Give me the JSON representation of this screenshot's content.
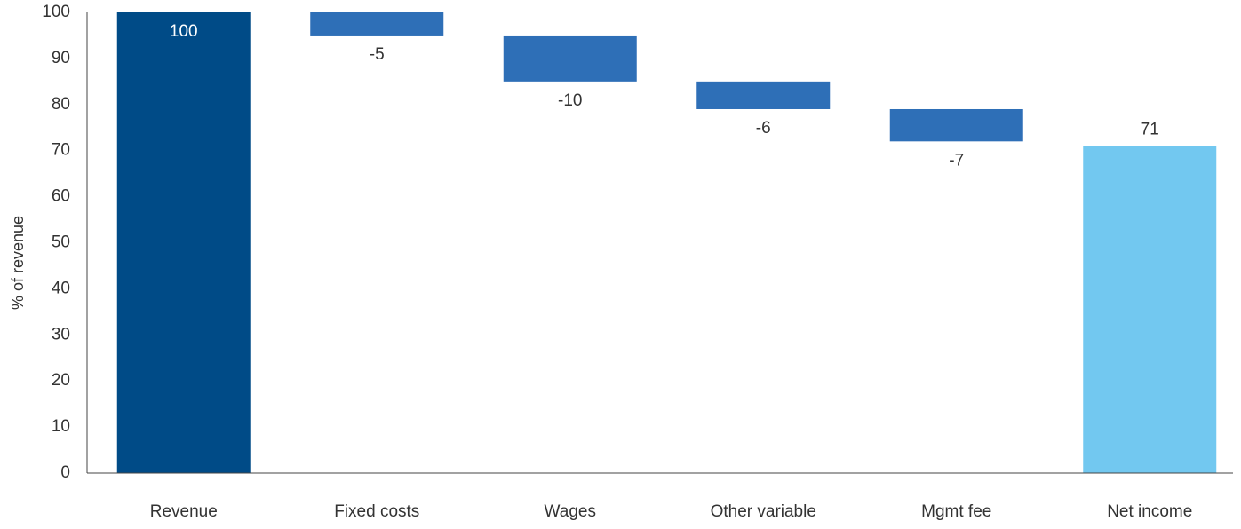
{
  "chart_data": {
    "type": "bar",
    "subtype": "waterfall",
    "categories": [
      "Revenue",
      "Fixed costs",
      "Wages",
      "Other variable",
      "Mgmt fee",
      "Net income"
    ],
    "values": [
      100,
      -5,
      -10,
      -6,
      -7,
      71
    ],
    "data_labels": [
      "100",
      "-5",
      "-10",
      "-6",
      "-7",
      "71"
    ],
    "bar_kinds": [
      "total",
      "delta",
      "delta",
      "delta",
      "delta",
      "total"
    ],
    "ylabel": "% of revenue",
    "xlabel": "",
    "title": "",
    "ylim": [
      0,
      100
    ],
    "yticks": [
      0,
      10,
      20,
      30,
      40,
      50,
      60,
      70,
      80,
      90,
      100
    ],
    "grid": false,
    "legend": "none",
    "colors": {
      "start": "#004b87",
      "delta": "#2e6fb7",
      "end": "#72c8f0",
      "axis": "#444444",
      "text": "#333333",
      "inside_label": "#ffffff"
    }
  }
}
